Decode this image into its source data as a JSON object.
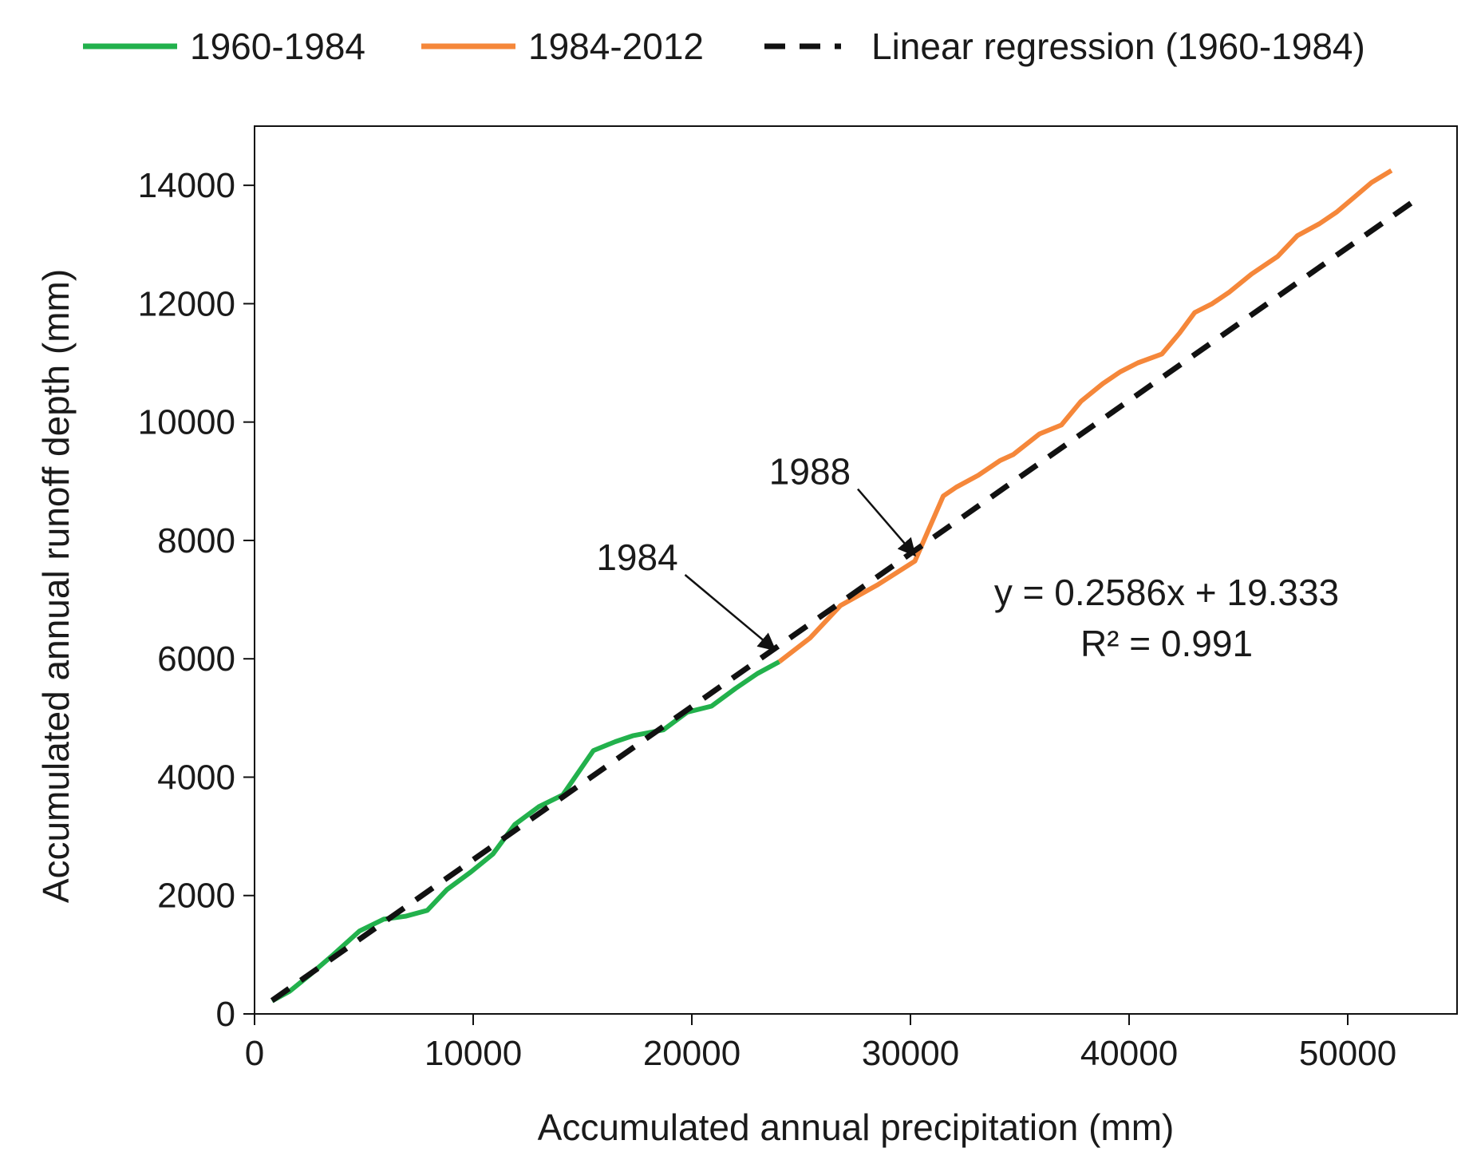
{
  "chart_data": {
    "type": "line",
    "xlabel": "Accumulated annual precipitation (mm)",
    "ylabel": "Accumulated annual runoff depth (mm)",
    "xlim": [
      0,
      55000
    ],
    "ylim": [
      0,
      15000
    ],
    "xticks": [
      0,
      10000,
      20000,
      30000,
      40000,
      50000
    ],
    "yticks": [
      0,
      2000,
      4000,
      6000,
      8000,
      10000,
      12000,
      14000
    ],
    "grid": false,
    "legend_position": "top",
    "colors": {
      "green": "#22b14c",
      "orange": "#f5873a",
      "black": "#111111"
    },
    "series": [
      {
        "name": "1960-1984",
        "color": "#22b14c",
        "style": "solid",
        "x": [
          800,
          1600,
          2500,
          3600,
          4800,
          5900,
          6900,
          7900,
          8800,
          9900,
          10900,
          11900,
          13000,
          14100,
          15500,
          16500,
          17300,
          18700,
          19800,
          20900,
          22000,
          23000,
          24000
        ],
        "y": [
          220,
          380,
          650,
          1000,
          1400,
          1600,
          1650,
          1750,
          2100,
          2400,
          2700,
          3200,
          3500,
          3700,
          4450,
          4600,
          4700,
          4800,
          5100,
          5200,
          5500,
          5750,
          5950
        ]
      },
      {
        "name": "1984-2012",
        "color": "#f5873a",
        "style": "solid",
        "x": [
          24000,
          25400,
          26800,
          28500,
          30200,
          31500,
          32100,
          33100,
          34100,
          34700,
          35900,
          36900,
          37800,
          38800,
          39600,
          40400,
          41500,
          42300,
          43000,
          43800,
          44600,
          45600,
          46800,
          47700,
          48700,
          49500,
          50300,
          51100,
          52000
        ],
        "y": [
          5950,
          6350,
          6900,
          7250,
          7650,
          8750,
          8900,
          9100,
          9350,
          9450,
          9800,
          9950,
          10350,
          10650,
          10850,
          11000,
          11150,
          11500,
          11850,
          12000,
          12200,
          12500,
          12800,
          13150,
          13350,
          13550,
          13800,
          14050,
          14250
        ]
      },
      {
        "name": "Linear regression (1960-1984)",
        "color": "#111111",
        "style": "dashed",
        "slope": 0.2586,
        "intercept": 19.333,
        "x": [
          800,
          53300
        ],
        "y": [
          226,
          13803
        ]
      }
    ],
    "annotations": [
      {
        "text": "1984",
        "label_at": [
          17500,
          7500
        ],
        "arrow_to": [
          23800,
          6150
        ]
      },
      {
        "text": "1988",
        "label_at": [
          25400,
          8950
        ],
        "arrow_to": [
          30200,
          7750
        ]
      }
    ],
    "equation": {
      "line1": "y = 0.2586x + 19.333",
      "line2": "R² = 0.991"
    }
  }
}
